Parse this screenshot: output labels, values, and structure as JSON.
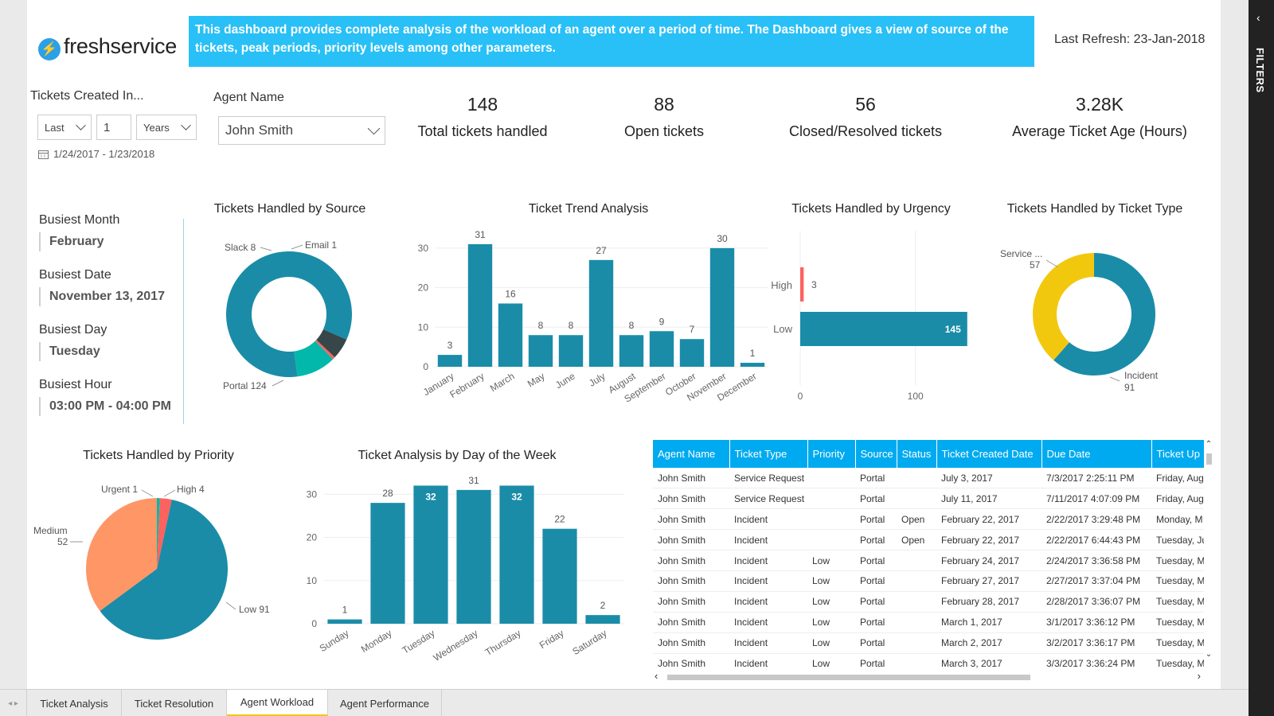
{
  "header": {
    "logo_text": "freshservice",
    "banner": "This dashboard provides complete analysis of the workload of an agent over a period of time. The Dashboard gives a view of source of the tickets, peak periods, priority levels among other parameters.",
    "last_refresh": "Last Refresh: 23-Jan-2018"
  },
  "filters": {
    "created_label": "Tickets Created In...",
    "period_mode": "Last",
    "period_count": "1",
    "period_unit": "Years",
    "date_range": "1/24/2017 - 1/23/2018",
    "agent_label": "Agent Name",
    "agent_value": "John Smith",
    "pane_label": "FILTERS"
  },
  "kpis": [
    {
      "value": "148",
      "label": "Total tickets handled"
    },
    {
      "value": "88",
      "label": "Open tickets"
    },
    {
      "value": "56",
      "label": "Closed/Resolved tickets"
    },
    {
      "value": "3.28K",
      "label": "Average Ticket Age (Hours)"
    }
  ],
  "busiest": [
    {
      "label": "Busiest Month",
      "value": "February"
    },
    {
      "label": "Busiest Date",
      "value": "November 13, 2017"
    },
    {
      "label": "Busiest Day",
      "value": "Tuesday"
    },
    {
      "label": "Busiest Hour",
      "value": "03:00 PM - 04:00 PM"
    }
  ],
  "chart_data": [
    {
      "id": "source",
      "type": "pie",
      "title": "Tickets Handled by Source",
      "donut": true,
      "slices": [
        {
          "label": "Portal",
          "value": 124,
          "color": "#1a8ca8"
        },
        {
          "label": "Slack",
          "value": 8,
          "color": "#374649"
        },
        {
          "label": "Email",
          "value": 1,
          "color": "#fd625e"
        },
        {
          "label": "",
          "value": 15,
          "color": "#01b8aa"
        }
      ],
      "labels": [
        "Slack 8",
        "Email 1",
        "Portal 124"
      ]
    },
    {
      "id": "trend",
      "type": "bar",
      "title": "Ticket Trend Analysis",
      "categories": [
        "January",
        "February",
        "March",
        "May",
        "June",
        "July",
        "August",
        "September",
        "October",
        "November",
        "December"
      ],
      "values": [
        3,
        31,
        16,
        8,
        8,
        27,
        8,
        9,
        7,
        30,
        1
      ],
      "yticks": [
        0,
        10,
        20,
        30
      ],
      "ylim": [
        0,
        33
      ],
      "color": "#1a8ca8"
    },
    {
      "id": "urgency",
      "type": "bar",
      "orientation": "horizontal",
      "title": "Tickets Handled by Urgency",
      "categories": [
        "High",
        "Low"
      ],
      "values": [
        3,
        145
      ],
      "colors": [
        "#fd625e",
        "#1a8ca8"
      ],
      "xticks": [
        0,
        100
      ],
      "xlim": [
        0,
        150
      ]
    },
    {
      "id": "tickettype",
      "type": "pie",
      "title": "Tickets Handled by Ticket Type",
      "donut": true,
      "slices": [
        {
          "label": "Incident",
          "value": 91,
          "color": "#1a8ca8"
        },
        {
          "label": "Service ...",
          "value": 57,
          "color": "#f2c80f"
        }
      ],
      "labels": [
        "Service ...",
        "57",
        "Incident",
        "91"
      ]
    },
    {
      "id": "priority",
      "type": "pie",
      "title": "Tickets Handled by Priority",
      "donut": false,
      "slices": [
        {
          "label": "Low",
          "value": 91,
          "color": "#1a8ca8"
        },
        {
          "label": "Medium",
          "value": 52,
          "color": "#fe9666"
        },
        {
          "label": "Urgent",
          "value": 1,
          "color": "#01b8aa"
        },
        {
          "label": "High",
          "value": 4,
          "color": "#fd625e"
        }
      ],
      "labels": [
        "Urgent 1",
        "High 4",
        "Medium",
        "52",
        "Low 91"
      ]
    },
    {
      "id": "dayofweek",
      "type": "bar",
      "title": "Ticket Analysis by Day of the Week",
      "categories": [
        "Sunday",
        "Monday",
        "Tuesday",
        "Wednesday",
        "Thursday",
        "Friday",
        "Saturday"
      ],
      "values": [
        1,
        28,
        32,
        31,
        32,
        22,
        2
      ],
      "yticks": [
        0,
        10,
        20,
        30
      ],
      "ylim": [
        0,
        33
      ],
      "color": "#1a8ca8"
    }
  ],
  "table": {
    "columns": [
      "Agent Name",
      "Ticket Type",
      "Priority",
      "Source",
      "Status",
      "Ticket Created Date",
      "Due Date",
      "Ticket Up"
    ],
    "rows": [
      [
        "John Smith",
        "Service Request",
        "",
        "Portal",
        "",
        "July 3, 2017",
        "7/3/2017 2:25:11 PM",
        "Friday, Aug"
      ],
      [
        "John Smith",
        "Service Request",
        "",
        "Portal",
        "",
        "July 11, 2017",
        "7/11/2017 4:07:09 PM",
        "Friday, Aug"
      ],
      [
        "John Smith",
        "Incident",
        "",
        "Portal",
        "Open",
        "February 22, 2017",
        "2/22/2017 3:29:48 PM",
        "Monday, M"
      ],
      [
        "John Smith",
        "Incident",
        "",
        "Portal",
        "Open",
        "February 22, 2017",
        "2/22/2017 6:44:43 PM",
        "Tuesday, Ju"
      ],
      [
        "John Smith",
        "Incident",
        "Low",
        "Portal",
        "",
        "February 24, 2017",
        "2/24/2017 3:36:58 PM",
        "Tuesday, M"
      ],
      [
        "John Smith",
        "Incident",
        "Low",
        "Portal",
        "",
        "February 27, 2017",
        "2/27/2017 3:37:04 PM",
        "Tuesday, M"
      ],
      [
        "John Smith",
        "Incident",
        "Low",
        "Portal",
        "",
        "February 28, 2017",
        "2/28/2017 3:36:07 PM",
        "Tuesday, M"
      ],
      [
        "John Smith",
        "Incident",
        "Low",
        "Portal",
        "",
        "March 1, 2017",
        "3/1/2017 3:36:12 PM",
        "Tuesday, M"
      ],
      [
        "John Smith",
        "Incident",
        "Low",
        "Portal",
        "",
        "March 2, 2017",
        "3/2/2017 3:36:17 PM",
        "Tuesday, M"
      ],
      [
        "John Smith",
        "Incident",
        "Low",
        "Portal",
        "",
        "March 3, 2017",
        "3/3/2017 3:36:24 PM",
        "Tuesday, M"
      ]
    ]
  },
  "tabs": [
    "Ticket Analysis",
    "Ticket Resolution",
    "Agent Workload",
    "Agent Performance"
  ],
  "active_tab": "Agent Workload"
}
